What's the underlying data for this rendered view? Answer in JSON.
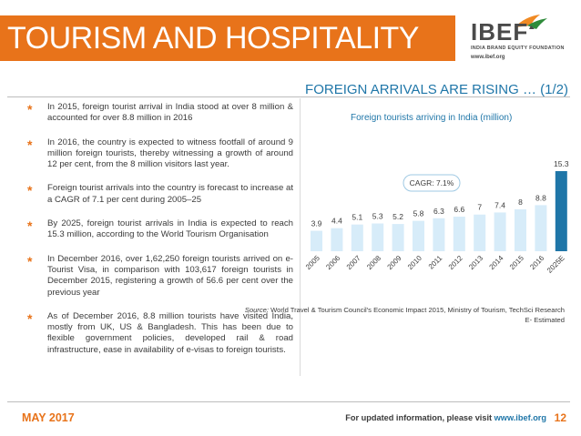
{
  "header": {
    "title": "TOURISM AND HOSPITALITY",
    "logo": {
      "name": "IBEF",
      "subtitle": "INDIA BRAND EQUITY FOUNDATION",
      "url": "www.ibef.org"
    }
  },
  "subtitle": "FOREIGN ARRIVALS ARE RISING … (1/2)",
  "bullets": [
    "In 2015, foreign tourist arrival in India stood at over 8 million & accounted for over 8.8 million in 2016",
    "In 2016, the country is expected to witness footfall of around 9 million foreign tourists, thereby witnessing a growth of around 12 per cent, from the 8 million visitors last year.",
    "Foreign tourist arrivals into the country is forecast to increase at a CAGR of 7.1 per cent during 2005–25",
    "By 2025, foreign tourist arrivals in India is expected to reach 15.3 million, according to the World Tourism Organisation",
    "In December 2016, over 1,62,250 foreign tourists arrived on e-Tourist Visa, in comparison with 103,617 foreign tourists in December 2015, registering a growth of 56.6 per cent over the previous year",
    "As of December 2016, 8.8 million tourists have visited India, mostly from UK, US & Bangladesh. This has been due to flexible government policies, developed rail & road infrastructure, ease in availability of e-visas to foreign tourists."
  ],
  "chart_data": {
    "type": "bar",
    "title": "Foreign tourists arriving in India (million)",
    "categories": [
      "2005",
      "2006",
      "2007",
      "2008",
      "2009",
      "2010",
      "2011",
      "2012",
      "2013",
      "2014",
      "2015",
      "2016",
      "2025E"
    ],
    "values": [
      3.9,
      4.4,
      5.1,
      5.3,
      5.2,
      5.8,
      6.3,
      6.6,
      7,
      7.4,
      8,
      8.8,
      15.3
    ],
    "value_labels": [
      "3.9",
      "4.4",
      "5.1",
      "5.3",
      "5.2",
      "5.8",
      "6.3",
      "6.6",
      "7",
      "7.4",
      "8",
      "8.8",
      "15.3"
    ],
    "annotation": "CAGR: 7.1%",
    "ylim": [
      0,
      15.3
    ],
    "colors": {
      "bar": "#d7ecf9",
      "highlight": "#1f76a8"
    },
    "grid": false
  },
  "source": {
    "label": "Source:",
    "text": "World Travel & Tourism Council's Economic Impact 2015, Ministry of Tourism, TechSci Research",
    "note": "E- Estimated"
  },
  "footer": {
    "date": "MAY 2017",
    "info_prefix": "For updated information, please visit",
    "info_url": "www.ibef.org",
    "page": "12"
  },
  "colors": {
    "accent": "#e8731a",
    "blue": "#1f76a8"
  }
}
